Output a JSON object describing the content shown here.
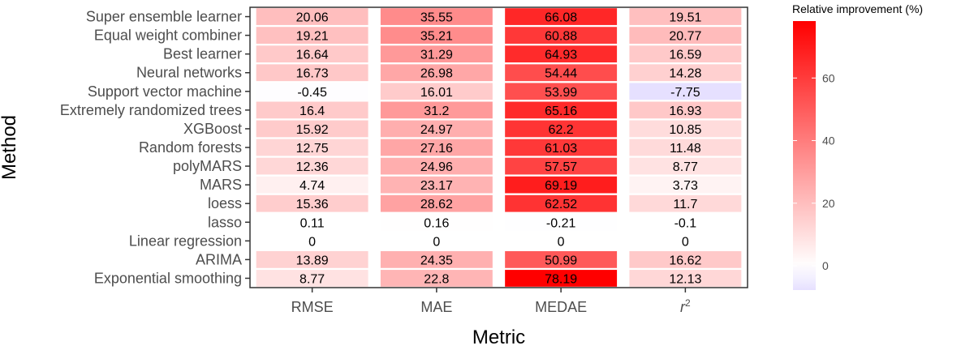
{
  "chart_data": {
    "type": "heatmap",
    "title": "",
    "xlabel": "Metric",
    "ylabel": "Method",
    "x_categories": [
      "RMSE",
      "MAE",
      "MEDAE",
      "r2"
    ],
    "y_categories": [
      "Super ensemble learner",
      "Equal weight combiner",
      "Best learner",
      "Neural networks",
      "Support vector machine",
      "Extremely randomized trees",
      "XGBoost",
      "Random forests",
      "polyMARS",
      "MARS",
      "loess",
      "lasso",
      "Linear regression",
      "ARIMA",
      "Exponential smoothing"
    ],
    "values": [
      [
        20.06,
        35.55,
        66.08,
        19.51
      ],
      [
        19.21,
        35.21,
        60.88,
        20.77
      ],
      [
        16.64,
        31.29,
        64.93,
        16.59
      ],
      [
        16.73,
        26.98,
        54.44,
        14.28
      ],
      [
        -0.45,
        16.01,
        53.99,
        -7.75
      ],
      [
        16.4,
        31.2,
        65.16,
        16.93
      ],
      [
        15.92,
        24.97,
        62.2,
        10.85
      ],
      [
        12.75,
        27.16,
        61.03,
        11.48
      ],
      [
        12.36,
        24.96,
        57.57,
        8.77
      ],
      [
        4.74,
        23.17,
        69.19,
        3.73
      ],
      [
        15.36,
        28.62,
        62.52,
        11.7
      ],
      [
        0.11,
        0.16,
        -0.21,
        -0.1
      ],
      [
        0,
        0,
        0,
        0
      ],
      [
        13.89,
        24.35,
        50.99,
        16.62
      ],
      [
        8.77,
        22.8,
        78.19,
        12.13
      ]
    ],
    "value_labels": [
      [
        "20.06",
        "35.55",
        "66.08",
        "19.51"
      ],
      [
        "19.21",
        "35.21",
        "60.88",
        "20.77"
      ],
      [
        "16.64",
        "31.29",
        "64.93",
        "16.59"
      ],
      [
        "16.73",
        "26.98",
        "54.44",
        "14.28"
      ],
      [
        "-0.45",
        "16.01",
        "53.99",
        "-7.75"
      ],
      [
        "16.4",
        "31.2",
        "65.16",
        "16.93"
      ],
      [
        "15.92",
        "24.97",
        "62.2",
        "10.85"
      ],
      [
        "12.75",
        "27.16",
        "61.03",
        "11.48"
      ],
      [
        "12.36",
        "24.96",
        "57.57",
        "8.77"
      ],
      [
        "4.74",
        "23.17",
        "69.19",
        "3.73"
      ],
      [
        "15.36",
        "28.62",
        "62.52",
        "11.7"
      ],
      [
        "0.11",
        "0.16",
        "-0.21",
        "-0.1"
      ],
      [
        "0",
        "0",
        "0",
        "0"
      ],
      [
        "13.89",
        "24.35",
        "50.99",
        "16.62"
      ],
      [
        "8.77",
        "22.8",
        "78.19",
        "12.13"
      ]
    ],
    "legend": {
      "title": "Relative improvement (%)",
      "ticks": [
        0,
        20,
        40,
        60
      ],
      "range": [
        -7.75,
        78.19
      ],
      "position": "right"
    },
    "colors": {
      "high": "#ff0000",
      "mid": "#ffffff",
      "low": "#e6e0ff",
      "panel_border": "#333333",
      "axis_text": "#4d4d4d"
    },
    "grid": false
  }
}
